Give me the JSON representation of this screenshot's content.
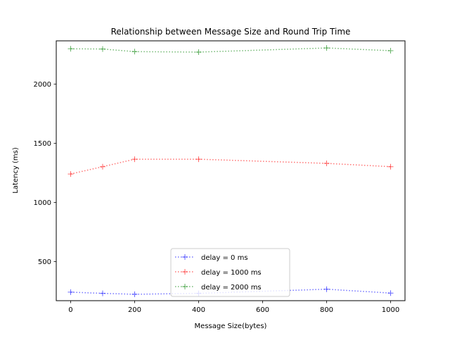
{
  "chart_data": {
    "type": "line",
    "title": "Relationship between Message Size and Round Trip Time",
    "xlabel": "Message Size(bytes)",
    "ylabel": "Latency (ms)",
    "xlim": [
      -45,
      1045
    ],
    "ylim": [
      170,
      2365
    ],
    "xticks": [
      0,
      200,
      400,
      600,
      800,
      1000
    ],
    "yticks": [
      500,
      1000,
      1500,
      2000
    ],
    "grid": false,
    "legend_position": "lower center",
    "x": [
      0,
      100,
      200,
      400,
      800,
      1000
    ],
    "series": [
      {
        "name": "delay = 0 ms",
        "color": "#0000ff",
        "values": [
          242,
          232,
          224,
          232,
          267,
          234
        ]
      },
      {
        "name": "delay = 1000 ms",
        "color": "#ff0000",
        "values": [
          1240,
          1302,
          1365,
          1365,
          1330,
          1302
        ]
      },
      {
        "name": "delay = 2000 ms",
        "color": "#008000",
        "values": [
          2298,
          2296,
          2274,
          2270,
          2305,
          2282
        ]
      }
    ]
  }
}
